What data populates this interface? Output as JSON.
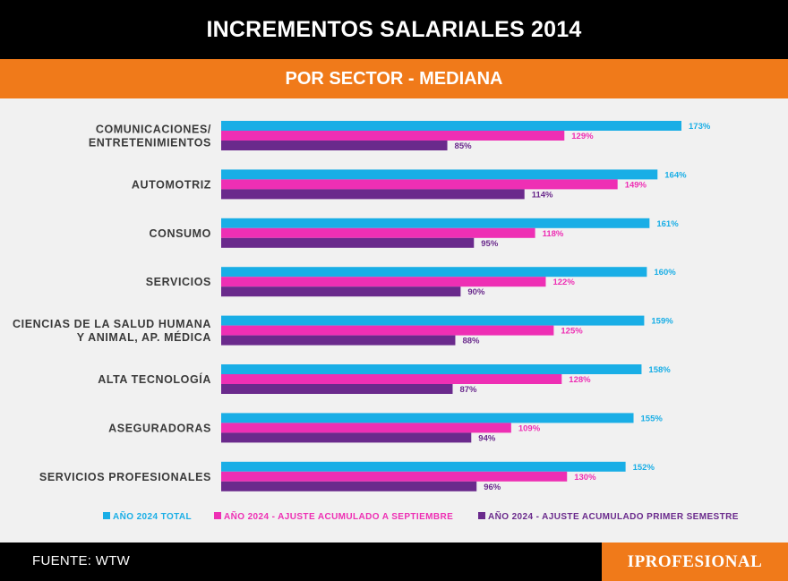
{
  "header": {
    "title": "INCREMENTOS SALARIALES 2014",
    "subtitle": "POR SECTOR - MEDIANA"
  },
  "footer": {
    "source": "FUENTE: WTW",
    "brand": "IPROFESIONAL"
  },
  "colors": {
    "title_bg": "#000000",
    "subtitle_bg": "#f07a1a",
    "brand_bg": "#f07a1a",
    "total": "#19aee6",
    "septiembre": "#ee2fb4",
    "semestre": "#6a2a8c",
    "label_text": "#3a3a3a"
  },
  "chart_data": {
    "type": "bar",
    "orientation": "horizontal",
    "categories": [
      "COMUNICACIONES/\nENTRETENIMIENTOS",
      "AUTOMOTRIZ",
      "CONSUMO",
      "SERVICIOS",
      "CIENCIAS DE LA SALUD HUMANA\nY ANIMAL, AP. MÉDICA",
      "ALTA TECNOLOGÍA",
      "ASEGURADORAS",
      "SERVICIOS PROFESIONALES"
    ],
    "series": [
      {
        "name": "AÑO 2024 TOTAL",
        "values": [
          173,
          164,
          161,
          160,
          159,
          158,
          155,
          152
        ],
        "labels": [
          "173%",
          "164%",
          "161%",
          "160%",
          "159%",
          "158%",
          "155%",
          "152%"
        ]
      },
      {
        "name": "AÑO 2024 - AJUSTE ACUMULADO A SEPTIEMBRE",
        "values": [
          129,
          149,
          118,
          122,
          125,
          128,
          109,
          130
        ],
        "labels": [
          "129%",
          "149%",
          "118%",
          "122%",
          "125%",
          "128%",
          "109%",
          "130%"
        ]
      },
      {
        "name": "AÑO 2024 - AJUSTE ACUMULADO PRIMER SEMESTRE",
        "values": [
          85,
          114,
          95,
          90,
          88,
          87,
          94,
          96
        ],
        "labels": [
          "85%",
          "114%",
          "95%",
          "90%",
          "88%",
          "87%",
          "94%",
          "96%"
        ]
      }
    ],
    "xlim": [
      0,
      180
    ],
    "grid": false,
    "legend_position": "bottom"
  }
}
